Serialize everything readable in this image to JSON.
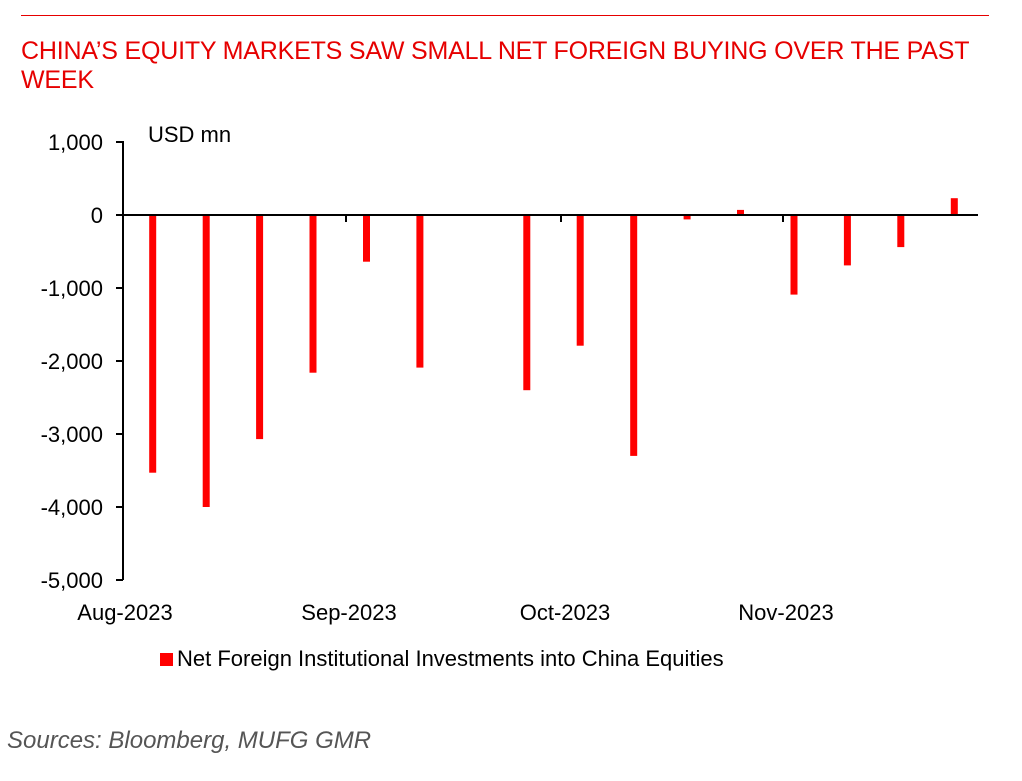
{
  "title": "CHINA’S EQUITY MARKETS SAW SMALL NET FOREIGN BUYING OVER THE PAST WEEK",
  "source": "Sources:  Bloomberg, MUFG GMR",
  "chart_data": {
    "type": "bar",
    "unit_label": "USD mn",
    "ylim": [
      -5000,
      1000
    ],
    "yticks": [
      1000,
      0,
      -1000,
      -2000,
      -3000,
      -4000,
      -5000
    ],
    "ytick_labels": [
      "1,000",
      "0",
      "-1,000",
      "-2,000",
      "-3,000",
      "-4,000",
      "-5,000"
    ],
    "xtick_labels": [
      "Aug-2023",
      "Sep-2023",
      "Oct-2023",
      "Nov-2023"
    ],
    "legend": "top-bottom",
    "grid": false,
    "series": [
      {
        "name": "Net Foreign Institutional Investments into China Equities",
        "color": "#ff0000",
        "values": [
          -3530,
          -4000,
          -3070,
          -2160,
          -640,
          -2090,
          null,
          -2400,
          -1790,
          -3300,
          -60,
          70,
          -1090,
          -690,
          -440,
          230
        ]
      }
    ]
  }
}
